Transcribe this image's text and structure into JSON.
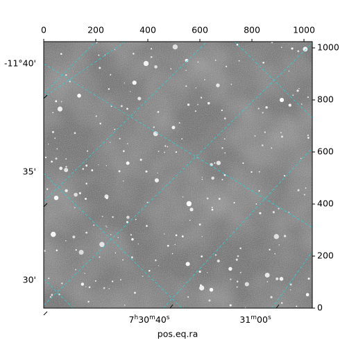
{
  "chart_data": {
    "type": "image",
    "xlabel": "pos.eq.ra",
    "xlim": [
      0,
      1032
    ],
    "ylim": [
      0,
      1024
    ],
    "xticks": [
      0,
      200,
      400,
      600,
      800,
      1000
    ],
    "yticks": [
      0,
      200,
      400,
      600,
      800,
      1000
    ],
    "wcs_yticks": [
      "-11°40'",
      "35'",
      "30'"
    ],
    "wcs_xticks": [
      "7h30m40s",
      "31m00s"
    ],
    "grid_color": "#2fd0d0"
  }
}
